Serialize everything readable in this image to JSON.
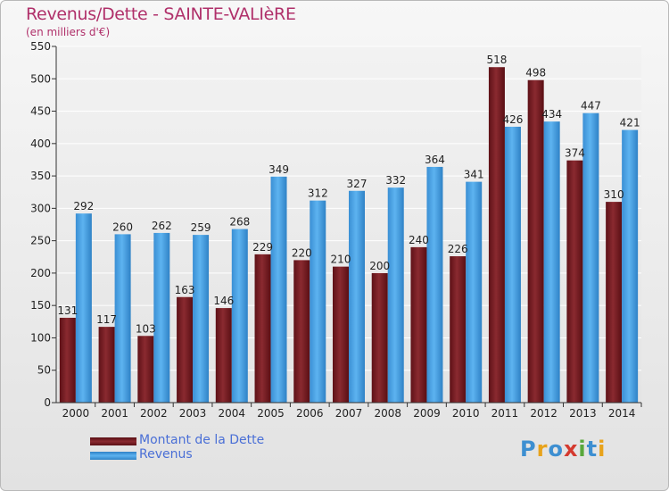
{
  "title": "Revenus/Dette - SAINTE-VALIèRE",
  "subtitle": "(en milliers d'€)",
  "colors": {
    "title": "#b0306a",
    "dette": "#7a1c22",
    "revenus": "#49a3e6",
    "grid": "#ffffff",
    "legend_text": "#4a6fd6"
  },
  "legend": {
    "dette_label": "Montant de la Dette",
    "revenus_label": "Revenus"
  },
  "logo": {
    "text": "Proxiti",
    "letters": [
      {
        "ch": "P",
        "color": "#3d8fd1"
      },
      {
        "ch": "r",
        "color": "#e8a31b"
      },
      {
        "ch": "o",
        "color": "#3d8fd1"
      },
      {
        "ch": "x",
        "color": "#d43a2f"
      },
      {
        "ch": "i",
        "color": "#5aa83c"
      },
      {
        "ch": "t",
        "color": "#3d8fd1"
      },
      {
        "ch": "i",
        "color": "#e8a31b"
      }
    ]
  },
  "chart_data": {
    "type": "bar",
    "title": "Revenus/Dette - SAINTE-VALIèRE",
    "subtitle": "(en milliers d'€)",
    "xlabel": "",
    "ylabel": "",
    "ylim": [
      0,
      550
    ],
    "ytick_step": 50,
    "grid": true,
    "legend_position": "bottom-left",
    "categories": [
      "2000",
      "2001",
      "2002",
      "2003",
      "2004",
      "2005",
      "2006",
      "2007",
      "2008",
      "2009",
      "2010",
      "2011",
      "2012",
      "2013",
      "2014"
    ],
    "series": [
      {
        "name": "Montant de la Dette",
        "color": "#7a1c22",
        "values": [
          131,
          117,
          103,
          163,
          146,
          229,
          220,
          210,
          200,
          240,
          226,
          518,
          498,
          374,
          310
        ]
      },
      {
        "name": "Revenus",
        "color": "#49a3e6",
        "values": [
          292,
          260,
          262,
          259,
          268,
          349,
          312,
          327,
          332,
          364,
          341,
          426,
          434,
          447,
          421
        ]
      }
    ]
  }
}
